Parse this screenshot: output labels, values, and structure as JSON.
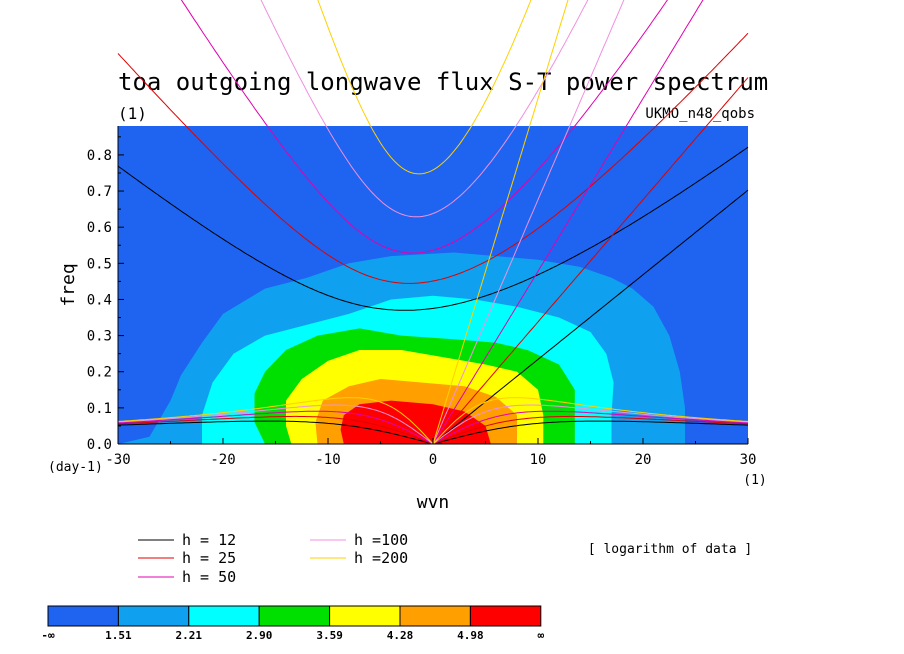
{
  "chart_data": {
    "type": "contour",
    "title": "toa outgoing longwave flux S-T power spectrum",
    "subtitle": "(1)",
    "source_label": "UKMO_n48_qobs",
    "xlabel": "wvn",
    "ylabel": "freq",
    "x_unit_label": "(1)",
    "y_unit_label": "(day-1)",
    "xlim": [
      -30,
      30
    ],
    "ylim": [
      0,
      0.88
    ],
    "x_ticks": [
      -30,
      -20,
      -10,
      0,
      10,
      20,
      30
    ],
    "x_tick_labels": [
      "-30",
      "-20",
      "-10",
      "0",
      "10",
      "20",
      "30"
    ],
    "y_ticks": [
      0,
      0.1,
      0.2,
      0.3,
      0.4,
      0.5,
      0.6,
      0.7,
      0.8
    ],
    "y_tick_labels": [
      "0.0",
      "0.1",
      "0.2",
      "0.3",
      "0.4",
      "0.5",
      "0.6",
      "0.7",
      "0.8"
    ],
    "data_note": "[ logarithm of data ]",
    "colorbar": {
      "colors": [
        "#1e64f0",
        "#10a0f0",
        "#00ffff",
        "#00e000",
        "#ffff00",
        "#ffa000",
        "#ff0000"
      ],
      "labels": [
        "-∞",
        "1.51",
        "2.21",
        "2.90",
        "3.59",
        "4.28",
        "4.98",
        "∞"
      ]
    },
    "contour_fields": [
      {
        "level": 1,
        "color": "#10a0f0",
        "pts": [
          [
            -30,
            0
          ],
          [
            -27,
            0.02
          ],
          [
            -26,
            0.07
          ],
          [
            -25,
            0.12
          ],
          [
            -24,
            0.19
          ],
          [
            -22,
            0.28
          ],
          [
            -20,
            0.36
          ],
          [
            -16,
            0.43
          ],
          [
            -12,
            0.46
          ],
          [
            -8,
            0.5
          ],
          [
            -4,
            0.52
          ],
          [
            2,
            0.53
          ],
          [
            6,
            0.52
          ],
          [
            10,
            0.51
          ],
          [
            14,
            0.49
          ],
          [
            17,
            0.46
          ],
          [
            19,
            0.43
          ],
          [
            21,
            0.38
          ],
          [
            22.5,
            0.3
          ],
          [
            23.5,
            0.2
          ],
          [
            24,
            0.1
          ],
          [
            24,
            0
          ]
        ]
      },
      {
        "level": 2,
        "color": "#00ffff",
        "pts": [
          [
            -22,
            0
          ],
          [
            -22,
            0.08
          ],
          [
            -21,
            0.17
          ],
          [
            -19,
            0.25
          ],
          [
            -16,
            0.3
          ],
          [
            -12,
            0.33
          ],
          [
            -8,
            0.36
          ],
          [
            -4,
            0.4
          ],
          [
            0,
            0.41
          ],
          [
            4,
            0.4
          ],
          [
            8,
            0.38
          ],
          [
            12,
            0.35
          ],
          [
            15,
            0.31
          ],
          [
            16.5,
            0.25
          ],
          [
            17.2,
            0.17
          ],
          [
            17,
            0.08
          ],
          [
            17,
            0
          ]
        ]
      },
      {
        "level": 3,
        "color": "#00e000",
        "pts": [
          [
            -16,
            0
          ],
          [
            -17,
            0.06
          ],
          [
            -17,
            0.14
          ],
          [
            -16,
            0.2
          ],
          [
            -14,
            0.26
          ],
          [
            -11,
            0.3
          ],
          [
            -7,
            0.32
          ],
          [
            -3,
            0.3
          ],
          [
            2,
            0.29
          ],
          [
            6,
            0.28
          ],
          [
            9,
            0.26
          ],
          [
            12,
            0.22
          ],
          [
            13.5,
            0.15
          ],
          [
            13.5,
            0.06
          ],
          [
            13.5,
            0
          ]
        ]
      },
      {
        "level": 4,
        "color": "#ffff00",
        "pts": [
          [
            -13.5,
            0
          ],
          [
            -14,
            0.05
          ],
          [
            -14,
            0.12
          ],
          [
            -12.5,
            0.18
          ],
          [
            -10,
            0.23
          ],
          [
            -7,
            0.26
          ],
          [
            -3,
            0.26
          ],
          [
            1,
            0.24
          ],
          [
            5,
            0.22
          ],
          [
            8,
            0.2
          ],
          [
            10,
            0.15
          ],
          [
            10.5,
            0.08
          ],
          [
            10.5,
            0
          ]
        ]
      },
      {
        "level": 5,
        "color": "#ffa000",
        "pts": [
          [
            -11,
            0
          ],
          [
            -11.2,
            0.06
          ],
          [
            -10.5,
            0.12
          ],
          [
            -8,
            0.16
          ],
          [
            -5,
            0.18
          ],
          [
            -1,
            0.17
          ],
          [
            3,
            0.16
          ],
          [
            6,
            0.13
          ],
          [
            8,
            0.08
          ],
          [
            8,
            0
          ]
        ]
      },
      {
        "level": 6,
        "color": "#ff0000",
        "pts": [
          [
            -8.5,
            0
          ],
          [
            -8.8,
            0.04
          ],
          [
            -8.5,
            0.08
          ],
          [
            -7,
            0.11
          ],
          [
            -4,
            0.12
          ],
          [
            0,
            0.11
          ],
          [
            3,
            0.09
          ],
          [
            5,
            0.05
          ],
          [
            5.5,
            0
          ]
        ]
      }
    ],
    "dispersion_legend": [
      {
        "label": "h = 12",
        "color": "#000000",
        "h": 12
      },
      {
        "label": "h = 25",
        "color": "#e00000",
        "h": 25
      },
      {
        "label": "h = 50",
        "color": "#e000b0",
        "h": 50
      },
      {
        "label": "h =100",
        "color": "#f090e0",
        "h": 100
      },
      {
        "label": "h =200",
        "color": "#ffd000",
        "h": 200
      }
    ]
  }
}
